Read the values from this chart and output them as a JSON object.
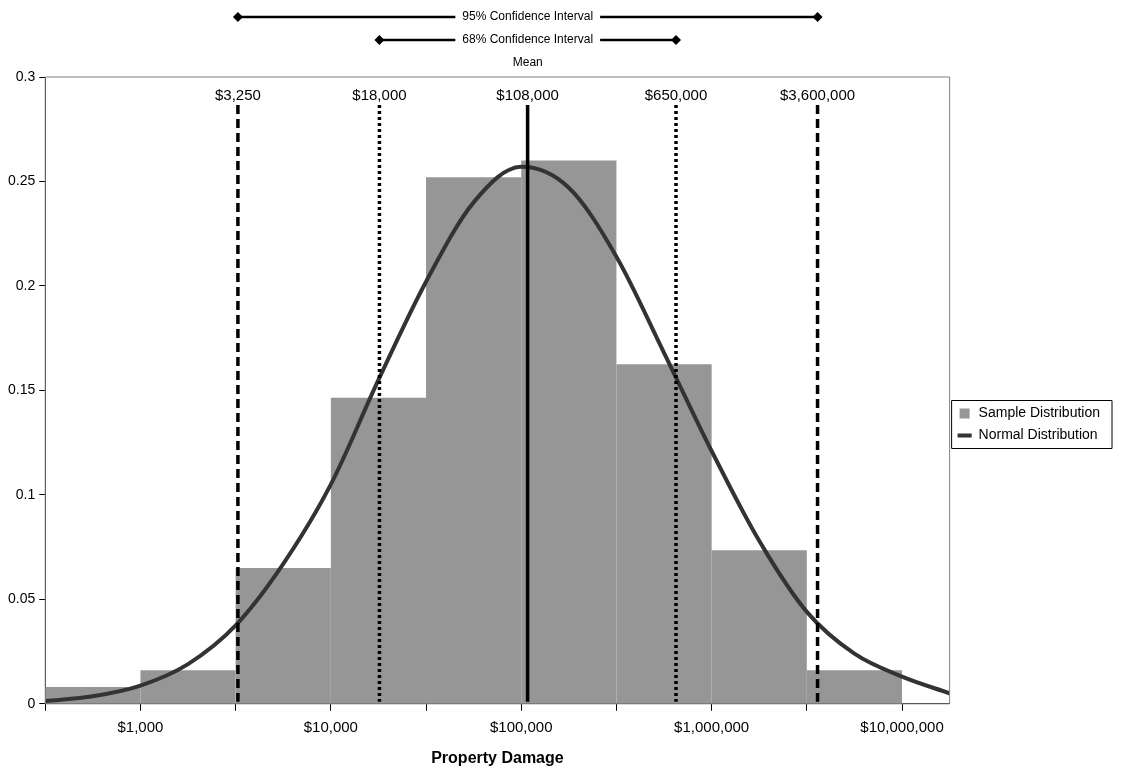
{
  "chart_data": {
    "type": "histogram",
    "xlabel": "Property Damage",
    "log": "x",
    "grid": false,
    "legend": "right",
    "bins": [
      316.2,
      1000,
      3162,
      10000,
      31620,
      100000,
      316200,
      1000000,
      3162000,
      10000000
    ],
    "series": [
      {
        "name": "Sample Distribution",
        "type": "histogram",
        "color": "#969696",
        "values": [
          0.008,
          0.016,
          0.065,
          0.1465,
          0.252,
          0.26,
          0.1625,
          0.0735,
          0.016
        ]
      },
      {
        "name": "Normal Distribution",
        "type": "line",
        "color": "#333333",
        "marker": "none",
        "line_style": "solid",
        "x": [
          316.2,
          562.3,
          1000,
          1778,
          3162,
          5623,
          10000,
          17780,
          31620,
          56230,
          100000,
          177800,
          316200,
          562300,
          1000000,
          1778000,
          3162000,
          5623000,
          10000000,
          17780000
        ],
        "values": [
          0.0013,
          0.0036,
          0.0087,
          0.019,
          0.0375,
          0.067,
          0.105,
          0.155,
          0.202,
          0.24,
          0.257,
          0.247,
          0.214,
          0.168,
          0.121,
          0.078,
          0.044,
          0.024,
          0.013,
          0.005
        ]
      }
    ],
    "xlim": [
      316.2,
      17780000
    ],
    "xticks": [
      {
        "value": 316.2,
        "label": null
      },
      {
        "value": 1000,
        "label": "$1,000"
      },
      {
        "value": 3162,
        "label": null
      },
      {
        "value": 10000,
        "label": "$10,000"
      },
      {
        "value": 31620,
        "label": null
      },
      {
        "value": 100000,
        "label": "$100,000"
      },
      {
        "value": 316200,
        "label": null
      },
      {
        "value": 1000000,
        "label": "$1,000,000"
      },
      {
        "value": 3162000,
        "label": null
      },
      {
        "value": 10000000,
        "label": "$10,000,000"
      }
    ],
    "ylim": [
      0,
      0.3
    ],
    "yticks": [
      0,
      0.05,
      0.1,
      0.15,
      0.2,
      0.25,
      0.3
    ],
    "ref_lines": [
      {
        "axis": "x",
        "value": 3250,
        "label": "$3,250",
        "line_style": "dashed",
        "color": "#000000"
      },
      {
        "axis": "x",
        "value": 18000,
        "label": "$18,000",
        "line_style": "dotted",
        "color": "#000000"
      },
      {
        "axis": "x",
        "value": 108000,
        "label": "$108,000",
        "line_style": "solid",
        "color": "#000000"
      },
      {
        "axis": "x",
        "value": 650000,
        "label": "$650,000",
        "line_style": "dotted",
        "color": "#000000"
      },
      {
        "axis": "x",
        "value": 3600000,
        "label": "$3,600,000",
        "line_style": "dashed",
        "color": "#000000"
      }
    ],
    "annotations": [
      "95% Confidence Interval",
      "68% Confidence Interval",
      "Mean"
    ]
  }
}
